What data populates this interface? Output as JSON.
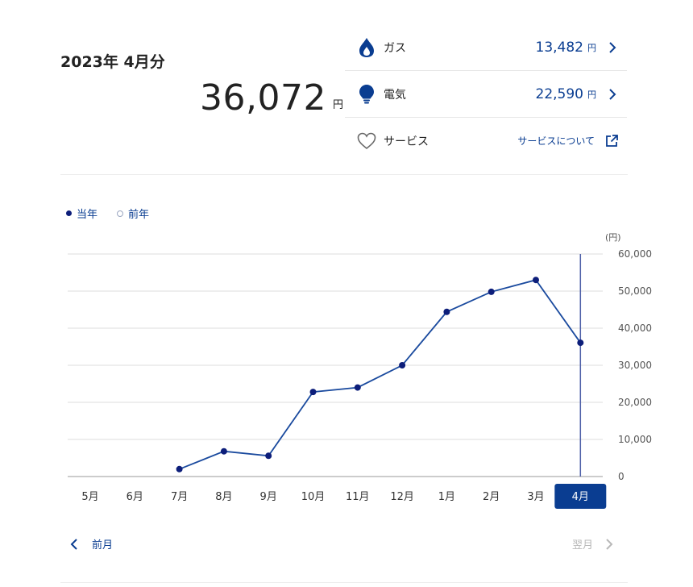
{
  "summary": {
    "period": "2023年 4月分",
    "total": "36,072",
    "unit": "円"
  },
  "items": [
    {
      "label": "ガス",
      "amount": "13,482",
      "unit": "円",
      "icon": "flame-icon"
    },
    {
      "label": "電気",
      "amount": "22,590",
      "unit": "円",
      "icon": "lightbulb-icon"
    },
    {
      "label": "サービス",
      "link": "サービスについて",
      "icon": "heart-outline-icon"
    }
  ],
  "legend": {
    "current": "当年",
    "previous": "前年"
  },
  "colors": {
    "primary": "#0a3d91",
    "line": "#1a4a9e",
    "marker": "#0d1e7a",
    "selected_bg": "#0a3d91",
    "disabled": "#b8b8b8"
  },
  "chart_data": {
    "type": "line",
    "unit_label": "(円)",
    "categories": [
      "5月",
      "6月",
      "7月",
      "8月",
      "9月",
      "10月",
      "11月",
      "12月",
      "1月",
      "2月",
      "3月",
      "4月"
    ],
    "selected": "4月",
    "series": [
      {
        "name": "当年",
        "values": [
          null,
          null,
          2000,
          6800,
          5600,
          22800,
          24000,
          30000,
          44400,
          49800,
          53000,
          36072
        ]
      }
    ],
    "yticks": [
      "0",
      "10,000",
      "20,000",
      "30,000",
      "40,000",
      "50,000",
      "60,000"
    ],
    "ylim": [
      0,
      60000
    ],
    "y_axis_side": "right",
    "grid": true
  },
  "nav": {
    "prev": "前月",
    "next": "翌月"
  }
}
